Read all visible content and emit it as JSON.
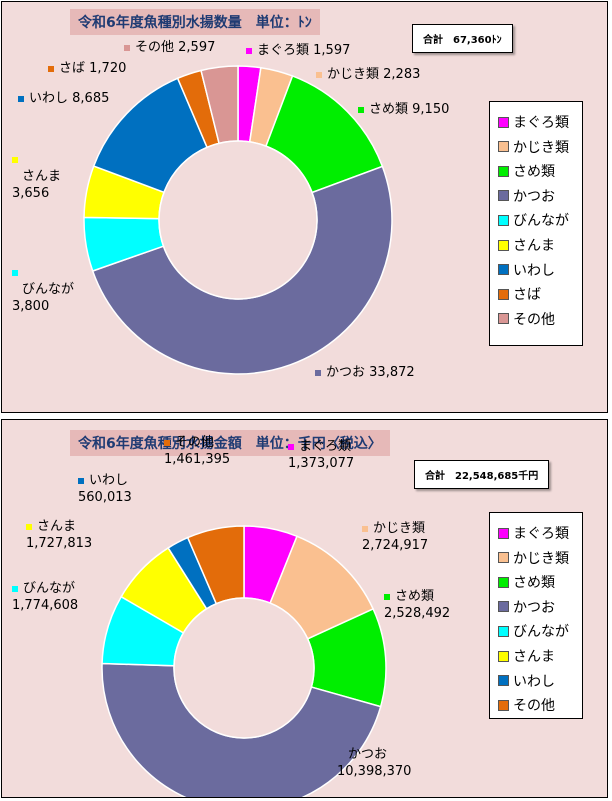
{
  "chart_data": [
    {
      "type": "pie",
      "title": "令和6年度魚種別水揚数量　単位：ﾄﾝ",
      "total_label": "合計　67,360ﾄﾝ",
      "categories": [
        "まぐろ類",
        "かじき類",
        "さめ類",
        "かつお",
        "びんなが",
        "さんま",
        "いわし",
        "さば",
        "その他"
      ],
      "values": [
        1597,
        2283,
        9150,
        33872,
        3800,
        3656,
        8685,
        1720,
        2597
      ],
      "value_labels": [
        "1,597",
        "2,283",
        "9,150",
        "33,872",
        "3,800",
        "3,656",
        "8,685",
        "1,720",
        "2,597"
      ],
      "colors": [
        "#ff00ff",
        "#fac090",
        "#00ee00",
        "#6b6b9e",
        "#00ffff",
        "#ffff00",
        "#0070c0",
        "#e36c0a",
        "#d99694"
      ],
      "legend_position": "right"
    },
    {
      "type": "pie",
      "title": "令和6年度魚種別水揚金額　単位：千円〈税込〉",
      "total_label": "合計　22,548,685千円",
      "categories": [
        "まぐろ類",
        "かじき類",
        "さめ類",
        "かつお",
        "びんなが",
        "さんま",
        "いわし",
        "その他"
      ],
      "values": [
        1373077,
        2724917,
        2528492,
        10398370,
        1774608,
        1727813,
        560013,
        1461395
      ],
      "value_labels": [
        "1,373,077",
        "2,724,917",
        "2,528,492",
        "10,398,370",
        "1,774,608",
        "1,727,813",
        "560,013",
        "1,461,395"
      ],
      "colors": [
        "#ff00ff",
        "#fac090",
        "#00ee00",
        "#6b6b9e",
        "#00ffff",
        "#ffff00",
        "#0070c0",
        "#e36c0a"
      ],
      "legend_position": "right"
    }
  ]
}
